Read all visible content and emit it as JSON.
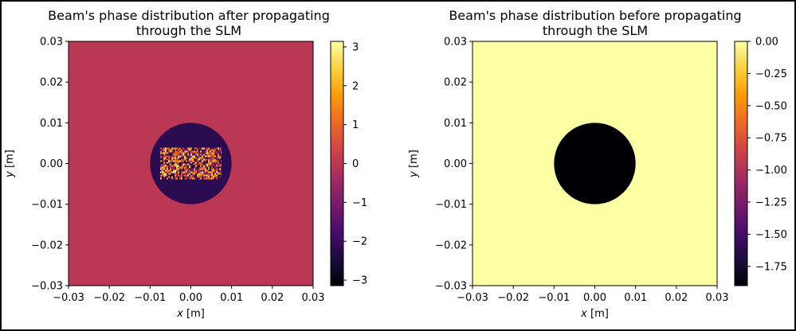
{
  "chart_data": [
    {
      "type": "heatmap",
      "title": "Beam's phase distribution after propagating\nthrough the SLM",
      "xlabel": "x [m]",
      "ylabel": "y [m]",
      "xlim": [
        -0.03,
        0.03
      ],
      "ylim": [
        -0.03,
        0.03
      ],
      "xticks": [
        "−0.03",
        "−0.02",
        "−0.01",
        "0.00",
        "0.01",
        "0.02",
        "0.03"
      ],
      "yticks": [
        "0.03",
        "0.02",
        "0.01",
        "0.00",
        "−0.01",
        "−0.02",
        "−0.03"
      ],
      "colormap": "inferno",
      "background_phase": 0,
      "disk": {
        "center": [
          0,
          0
        ],
        "radius": 0.01,
        "phase": -2.2
      },
      "random_region": {
        "x_range": [
          -0.0075,
          0.0075
        ],
        "y_range": [
          -0.0039,
          0.0039
        ],
        "phase_range": [
          -3.14159,
          3.14159
        ]
      },
      "colorbar": {
        "min": -3.14159,
        "max": 3.14159,
        "ticks": [
          3,
          2,
          1,
          0,
          -1,
          -2,
          -3
        ],
        "tick_labels": [
          "3",
          "2",
          "1",
          "0",
          "−1",
          "−2",
          "−3"
        ]
      }
    },
    {
      "type": "heatmap",
      "title": "Beam's phase distribution before propagating\nthrough the SLM",
      "xlabel": "x [m]",
      "ylabel": "y [m]",
      "xlim": [
        -0.03,
        0.03
      ],
      "ylim": [
        -0.03,
        0.03
      ],
      "xticks": [
        "−0.03",
        "−0.02",
        "−0.01",
        "0.00",
        "0.01",
        "0.02",
        "0.03"
      ],
      "yticks": [
        "0.03",
        "0.02",
        "0.01",
        "0.00",
        "−0.01",
        "−0.02",
        "−0.03"
      ],
      "colormap": "inferno",
      "background_phase": 0,
      "disk": {
        "center": [
          0,
          0
        ],
        "radius": 0.01,
        "phase": -1.9
      },
      "colorbar": {
        "min": -1.9,
        "max": 0,
        "ticks": [
          0,
          -0.25,
          -0.5,
          -0.75,
          -1.0,
          -1.25,
          -1.5,
          -1.75
        ],
        "tick_labels": [
          "0.00",
          "−0.25",
          "−0.50",
          "−0.75",
          "−1.00",
          "−1.25",
          "−1.50",
          "−1.75"
        ]
      }
    }
  ],
  "colors": {
    "inferno_stops": [
      "#000004",
      "#1b0c41",
      "#4a0c6b",
      "#781c6d",
      "#a52c60",
      "#cf4446",
      "#ed6925",
      "#fb9b06",
      "#f7d13d",
      "#fcffa4"
    ]
  }
}
